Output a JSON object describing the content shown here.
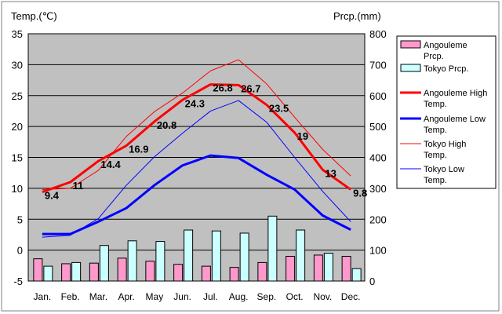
{
  "chart_data": {
    "type": "bar",
    "left_axis_title": "Temp.(℃)",
    "right_axis_title": "Prcp.(mm)",
    "categories": [
      "Jan.",
      "Feb.",
      "Mar.",
      "Apr.",
      "May",
      "Jun.",
      "Jul.",
      "Aug.",
      "Sep.",
      "Oct.",
      "Nov.",
      "Dec."
    ],
    "y_left_ticks": [
      "35",
      "30",
      "25",
      "20",
      "15",
      "10",
      "5",
      "0",
      "-5"
    ],
    "y_right_ticks": [
      "800",
      "700",
      "600",
      "500",
      "400",
      "300",
      "200",
      "100",
      "0"
    ],
    "ylim_left": [
      -5,
      35
    ],
    "ylim_right": [
      0,
      800
    ],
    "grid": true,
    "legend_position": "right",
    "plot_background": "#c0c0c0",
    "bar_series": [
      {
        "name": "Angouleme Prcp.",
        "color": "#ff99cc",
        "values": [
          72,
          56,
          58,
          74,
          64,
          54,
          48,
          44,
          60,
          80,
          84,
          80
        ]
      },
      {
        "name": "Tokyo Prcp.",
        "color": "#ccffff",
        "values": [
          48,
          60,
          115,
          130,
          128,
          165,
          162,
          155,
          210,
          165,
          90,
          40
        ]
      }
    ],
    "line_series": [
      {
        "name": "Angouleme High Temp.",
        "color": "#ff0000",
        "width": 3,
        "values": [
          9.4,
          11,
          14.4,
          16.9,
          20.8,
          24.3,
          26.8,
          26.7,
          23.5,
          19,
          13,
          9.8
        ],
        "labels": [
          "9.4",
          "11",
          "14.4",
          "16.9",
          "20.8",
          "24.3",
          "26.8",
          "26.7",
          "23.5",
          "19",
          "13",
          "9.8"
        ]
      },
      {
        "name": "Angouleme Low Temp.",
        "color": "#0000ff",
        "width": 3,
        "values": [
          2.6,
          2.6,
          4.6,
          6.8,
          10.5,
          13.7,
          15.3,
          14.9,
          12.2,
          9.8,
          5.6,
          3.3
        ]
      },
      {
        "name": "Tokyo High Temp.",
        "color": "#ff0000",
        "width": 1,
        "values": [
          9.8,
          10.0,
          12.9,
          18.4,
          22.4,
          25.4,
          29.0,
          30.8,
          26.9,
          21.5,
          16.3,
          12.0
        ]
      },
      {
        "name": "Tokyo Low Temp.",
        "color": "#0000ff",
        "width": 1,
        "values": [
          2.1,
          2.4,
          5.1,
          10.5,
          15.1,
          18.9,
          22.5,
          24.2,
          20.7,
          15.0,
          9.5,
          4.6
        ]
      }
    ],
    "legend": [
      {
        "kind": "bar",
        "color": "#ff99cc",
        "text": [
          "Angouleme",
          "Prcp."
        ]
      },
      {
        "kind": "bar",
        "color": "#ccffff",
        "text": [
          "Tokyo Prcp."
        ]
      },
      {
        "kind": "line",
        "color": "#ff0000",
        "width": 3,
        "text": [
          "Angouleme High",
          "Temp."
        ]
      },
      {
        "kind": "line",
        "color": "#0000ff",
        "width": 3,
        "text": [
          "Angouleme Low",
          "Temp."
        ]
      },
      {
        "kind": "line",
        "color": "#ff0000",
        "width": 1,
        "text": [
          "Tokyo High",
          "Temp."
        ]
      },
      {
        "kind": "line",
        "color": "#0000ff",
        "width": 1,
        "text": [
          "Tokyo Low",
          "Temp."
        ]
      }
    ]
  }
}
